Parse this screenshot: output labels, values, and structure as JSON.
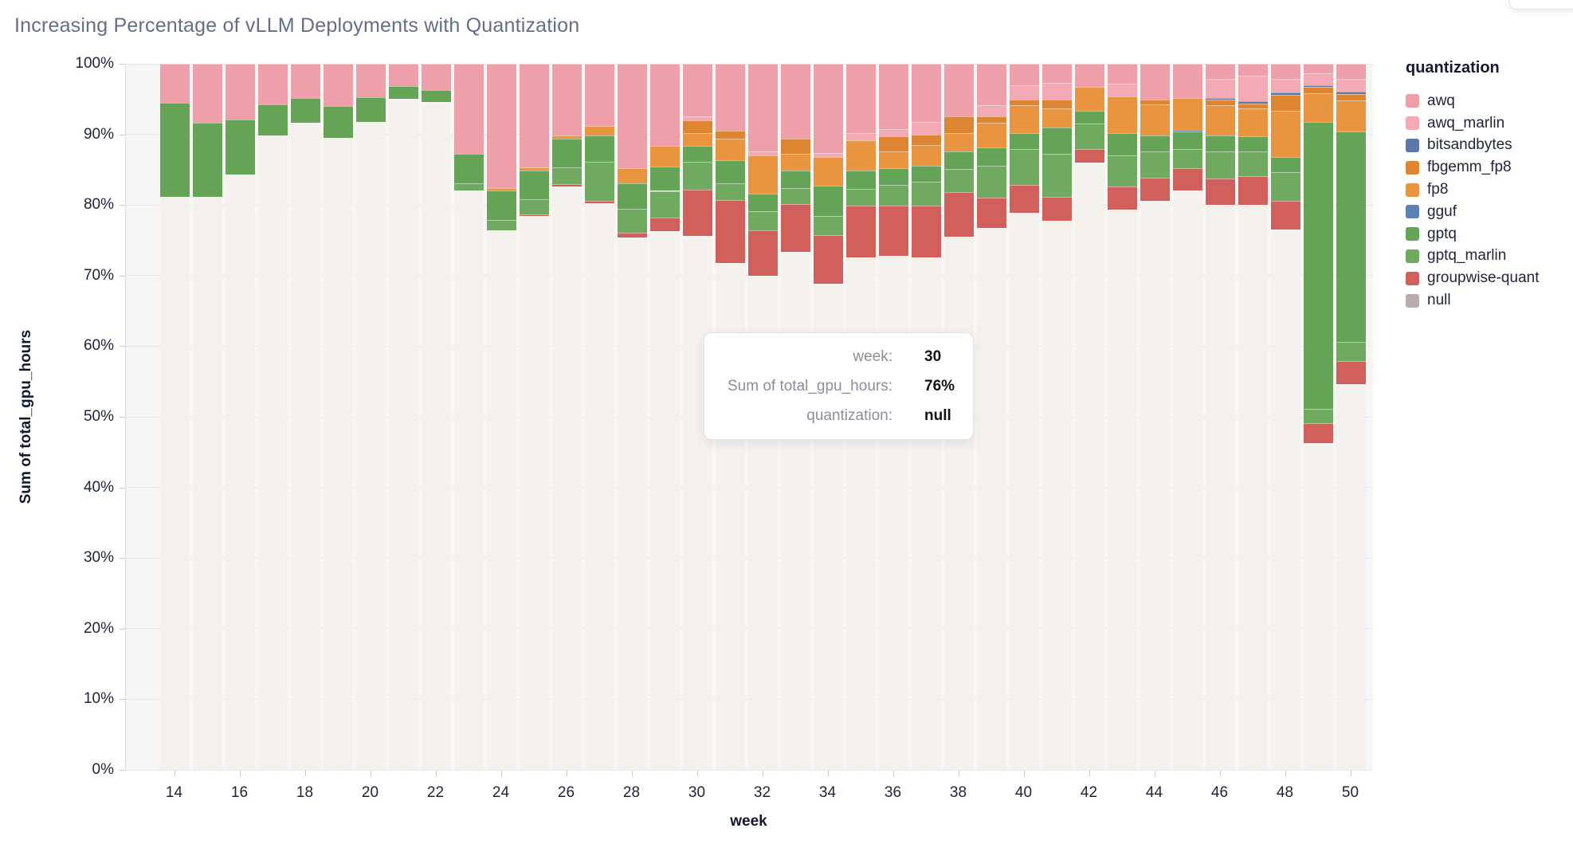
{
  "page": {
    "title": "Increasing Percentage of vLLM Deployments with Quantization"
  },
  "axes": {
    "x_title": "week",
    "y_title": "Sum of total_gpu_hours",
    "y_tick_values": [
      0,
      10,
      20,
      30,
      40,
      50,
      60,
      70,
      80,
      90,
      100
    ],
    "y_tick_suffix": "%",
    "x_tick_values": [
      14,
      16,
      18,
      20,
      22,
      24,
      26,
      28,
      30,
      32,
      34,
      36,
      38,
      40,
      42,
      44,
      46,
      48,
      50
    ]
  },
  "legend": {
    "title": "quantization"
  },
  "tooltip": {
    "rows": [
      {
        "label": "week:",
        "value": "30"
      },
      {
        "label": "Sum of total_gpu_hours:",
        "value": "76%"
      },
      {
        "label": "quantization:",
        "value": "null"
      }
    ]
  },
  "chart_data": {
    "type": "bar",
    "stacked": true,
    "normalized_percent": true,
    "title": "Increasing Percentage of vLLM Deployments with Quantization",
    "xlabel": "week",
    "ylabel": "Sum of total_gpu_hours",
    "ylim": [
      0,
      100
    ],
    "legend_position": "right",
    "grid": true,
    "x": [
      14,
      15,
      16,
      17,
      18,
      19,
      20,
      21,
      22,
      23,
      24,
      25,
      26,
      27,
      28,
      29,
      30,
      31,
      32,
      33,
      34,
      35,
      36,
      37,
      38,
      39,
      40,
      41,
      42,
      43,
      44,
      45,
      46,
      47,
      48,
      49,
      50
    ],
    "stack_order_bottom_to_top": [
      "null",
      "groupwise-quant",
      "gptq_marlin",
      "gptq",
      "gguf",
      "fp8",
      "fbgemm_fp8",
      "bitsandbytes",
      "awq_marlin",
      "awq"
    ],
    "series": [
      {
        "name": "awq",
        "color": "#ef9faa",
        "values": [
          5.5,
          8.3,
          7.9,
          5.7,
          4.8,
          6.0,
          4.7,
          3.2,
          3.7,
          12.8,
          17.6,
          14.7,
          10.1,
          8.8,
          14.8,
          11.6,
          7.4,
          9.5,
          12.4,
          10.6,
          12.6,
          9.8,
          9.2,
          8.2,
          7.5,
          5.9,
          3.1,
          2.7,
          3.3,
          2.8,
          5.1,
          4.8,
          2.1,
          1.7,
          2.1,
          1.3,
          2.1
        ]
      },
      {
        "name": "awq_marlin",
        "color": "#f3aab4",
        "values": [
          0,
          0,
          0,
          0,
          0,
          0,
          0,
          0,
          0,
          0,
          0,
          0,
          0,
          0,
          0,
          0,
          0.6,
          0,
          0.6,
          0,
          0.6,
          1.0,
          1.1,
          1.8,
          0,
          1.6,
          2.0,
          2.4,
          0,
          1.8,
          0,
          0,
          2.7,
          3.6,
          2.0,
          1.7,
          1.9
        ]
      },
      {
        "name": "bitsandbytes",
        "color": "#5a77a8",
        "values": [
          0,
          0,
          0,
          0,
          0,
          0,
          0,
          0,
          0,
          0,
          0,
          0,
          0,
          0,
          0,
          0,
          0,
          0,
          0,
          0,
          0,
          0,
          0,
          0,
          0,
          0,
          0,
          0,
          0,
          0,
          0,
          0,
          0.3,
          0.3,
          0.3,
          0.3,
          0.3
        ]
      },
      {
        "name": "fbgemm_fp8",
        "color": "#de8532",
        "values": [
          0,
          0,
          0,
          0,
          0,
          0,
          0,
          0,
          0,
          0,
          0,
          0,
          0,
          0,
          0,
          0,
          1.8,
          1.1,
          0,
          2.1,
          0,
          0,
          2.1,
          1.5,
          2.3,
          0.8,
          0.8,
          1.2,
          0,
          0,
          0.7,
          0,
          0.8,
          0.7,
          2.3,
          0.9,
          0.9
        ]
      },
      {
        "name": "fp8",
        "color": "#e9943e",
        "values": [
          0,
          0,
          0,
          0,
          0,
          0,
          0,
          0,
          0,
          0,
          0.3,
          0.4,
          0.5,
          1.3,
          2.1,
          3.0,
          1.8,
          3.0,
          5.4,
          2.4,
          4.1,
          4.3,
          2.4,
          3.0,
          2.6,
          3.6,
          3.9,
          2.7,
          3.4,
          5.2,
          4.3,
          4.6,
          4.2,
          4.0,
          6.5,
          4.0,
          4.4
        ]
      },
      {
        "name": "gguf",
        "color": "#5c81b5",
        "values": [
          0,
          0,
          0,
          0,
          0,
          0,
          0,
          0,
          0,
          0,
          0,
          0,
          0,
          0,
          0,
          0,
          0,
          0,
          0,
          0,
          0,
          0,
          0,
          0,
          0,
          0,
          0,
          0,
          0,
          0,
          0,
          0.2,
          0,
          0,
          0,
          0,
          0
        ]
      },
      {
        "name": "gptq",
        "color": "#65a356",
        "values": [
          13.3,
          10.5,
          7.8,
          4.5,
          3.5,
          4.5,
          3.5,
          1.8,
          1.7,
          4.1,
          4.2,
          4.1,
          4.1,
          3.8,
          3.6,
          3.4,
          2.3,
          3.3,
          2.5,
          2.5,
          4.3,
          2.6,
          2.3,
          2.2,
          2.5,
          2.5,
          2.3,
          3.7,
          1.8,
          3.2,
          2.3,
          2.5,
          2.3,
          2.1,
          2.1,
          40.7,
          29.8
        ]
      },
      {
        "name": "gptq_marlin",
        "color": "#70aa60",
        "values": [
          0,
          0,
          0,
          0,
          0,
          0,
          0,
          0,
          0,
          1.1,
          1.5,
          2.1,
          2.3,
          5.5,
          3.4,
          3.8,
          3.9,
          2.4,
          2.7,
          2.3,
          2.7,
          2.4,
          3.0,
          3.4,
          3.3,
          4.6,
          5.1,
          6.1,
          3.6,
          4.4,
          3.7,
          2.7,
          3.8,
          3.5,
          4.1,
          2.0,
          2.7
        ]
      },
      {
        "name": "groupwise-quant",
        "color": "#d15f5c",
        "values": [
          0,
          0,
          0,
          0,
          0,
          0,
          0,
          0,
          0,
          0,
          0,
          0.2,
          0.4,
          0.3,
          0.7,
          1.9,
          6.6,
          8.9,
          6.4,
          6.7,
          6.9,
          7.3,
          7.1,
          7.3,
          6.3,
          4.2,
          3.9,
          3.4,
          1.9,
          3.3,
          3.3,
          3.2,
          3.8,
          4.1,
          4.1,
          2.8,
          3.3
        ]
      },
      {
        "name": "null",
        "color": "#b7aeab",
        "bar_color": "#f5f1ed",
        "values": [
          81.2,
          81.2,
          84.3,
          89.8,
          91.7,
          89.5,
          91.8,
          95.0,
          94.6,
          82.0,
          76.4,
          78.5,
          82.6,
          80.3,
          75.4,
          76.3,
          75.6,
          71.8,
          70.0,
          73.4,
          68.8,
          72.6,
          72.8,
          72.6,
          75.5,
          76.8,
          78.9,
          77.8,
          86.0,
          79.3,
          80.6,
          82.0,
          80.0,
          80.0,
          76.5,
          46.3,
          54.6
        ]
      }
    ]
  }
}
